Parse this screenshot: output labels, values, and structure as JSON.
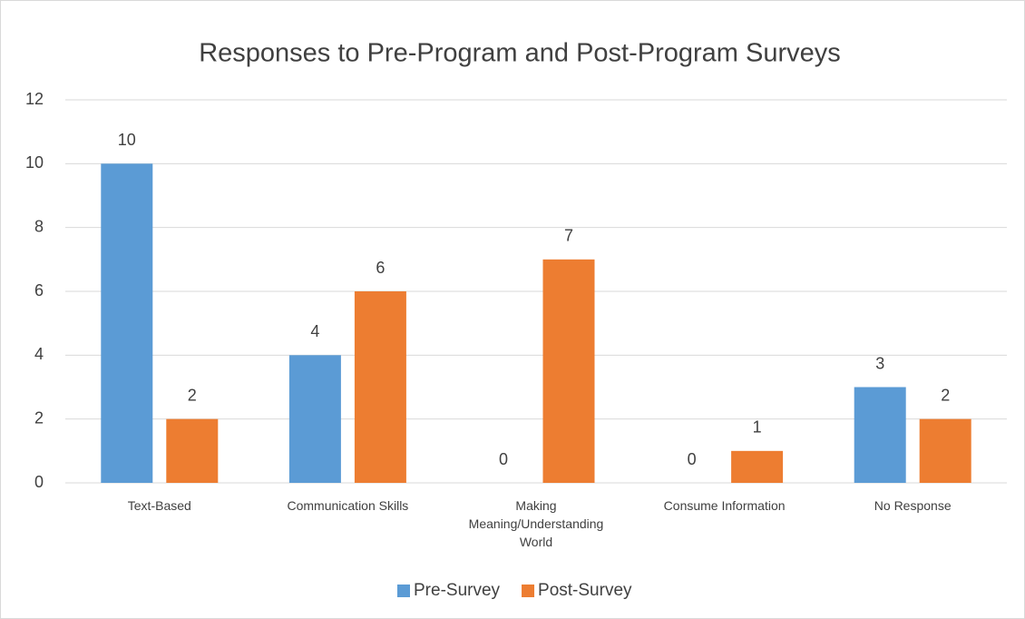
{
  "chart_data": {
    "type": "bar",
    "title": "Responses to Pre-Program and Post-Program Surveys",
    "categories": [
      "Text-Based",
      "Communication Skills",
      "Making Meaning/Understanding World",
      "Consume Information",
      "No Response"
    ],
    "series": [
      {
        "name": "Pre-Survey",
        "color": "#5b9bd5",
        "values": [
          10,
          4,
          0,
          0,
          3
        ]
      },
      {
        "name": "Post-Survey",
        "color": "#ed7d31",
        "values": [
          2,
          6,
          7,
          1,
          2
        ]
      }
    ],
    "ylim": [
      0,
      12
    ],
    "yticks": [
      0,
      2,
      4,
      6,
      8,
      10,
      12
    ],
    "grid": true,
    "legend": "bottom"
  }
}
